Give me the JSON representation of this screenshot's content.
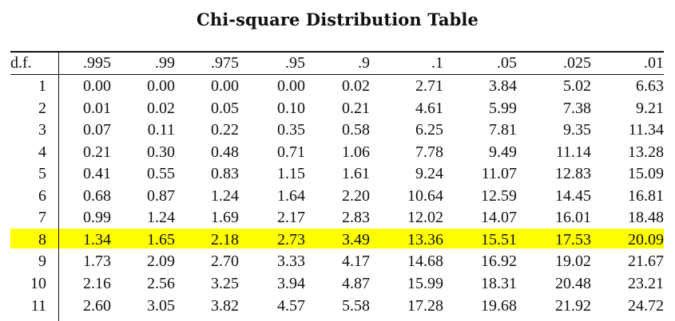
{
  "title": "Chi-square Distribution Table",
  "table": {
    "headers": [
      "d.f.",
      ".995",
      ".99",
      ".975",
      ".95",
      ".9",
      ".1",
      ".05",
      ".025",
      ".01"
    ],
    "highlight_row_index": 7,
    "highlight_color": "#ffff00",
    "rows": [
      [
        "1",
        "0.00",
        "0.00",
        "0.00",
        "0.00",
        "0.02",
        "2.71",
        "3.84",
        "5.02",
        "6.63"
      ],
      [
        "2",
        "0.01",
        "0.02",
        "0.05",
        "0.10",
        "0.21",
        "4.61",
        "5.99",
        "7.38",
        "9.21"
      ],
      [
        "3",
        "0.07",
        "0.11",
        "0.22",
        "0.35",
        "0.58",
        "6.25",
        "7.81",
        "9.35",
        "11.34"
      ],
      [
        "4",
        "0.21",
        "0.30",
        "0.48",
        "0.71",
        "1.06",
        "7.78",
        "9.49",
        "11.14",
        "13.28"
      ],
      [
        "5",
        "0.41",
        "0.55",
        "0.83",
        "1.15",
        "1.61",
        "9.24",
        "11.07",
        "12.83",
        "15.09"
      ],
      [
        "6",
        "0.68",
        "0.87",
        "1.24",
        "1.64",
        "2.20",
        "10.64",
        "12.59",
        "14.45",
        "16.81"
      ],
      [
        "7",
        "0.99",
        "1.24",
        "1.69",
        "2.17",
        "2.83",
        "12.02",
        "14.07",
        "16.01",
        "18.48"
      ],
      [
        "8",
        "1.34",
        "1.65",
        "2.18",
        "2.73",
        "3.49",
        "13.36",
        "15.51",
        "17.53",
        "20.09"
      ],
      [
        "9",
        "1.73",
        "2.09",
        "2.70",
        "3.33",
        "4.17",
        "14.68",
        "16.92",
        "19.02",
        "21.67"
      ],
      [
        "10",
        "2.16",
        "2.56",
        "3.25",
        "3.94",
        "4.87",
        "15.99",
        "18.31",
        "20.48",
        "23.21"
      ],
      [
        "11",
        "2.60",
        "3.05",
        "3.82",
        "4.57",
        "5.58",
        "17.28",
        "19.68",
        "21.92",
        "24.72"
      ]
    ]
  }
}
